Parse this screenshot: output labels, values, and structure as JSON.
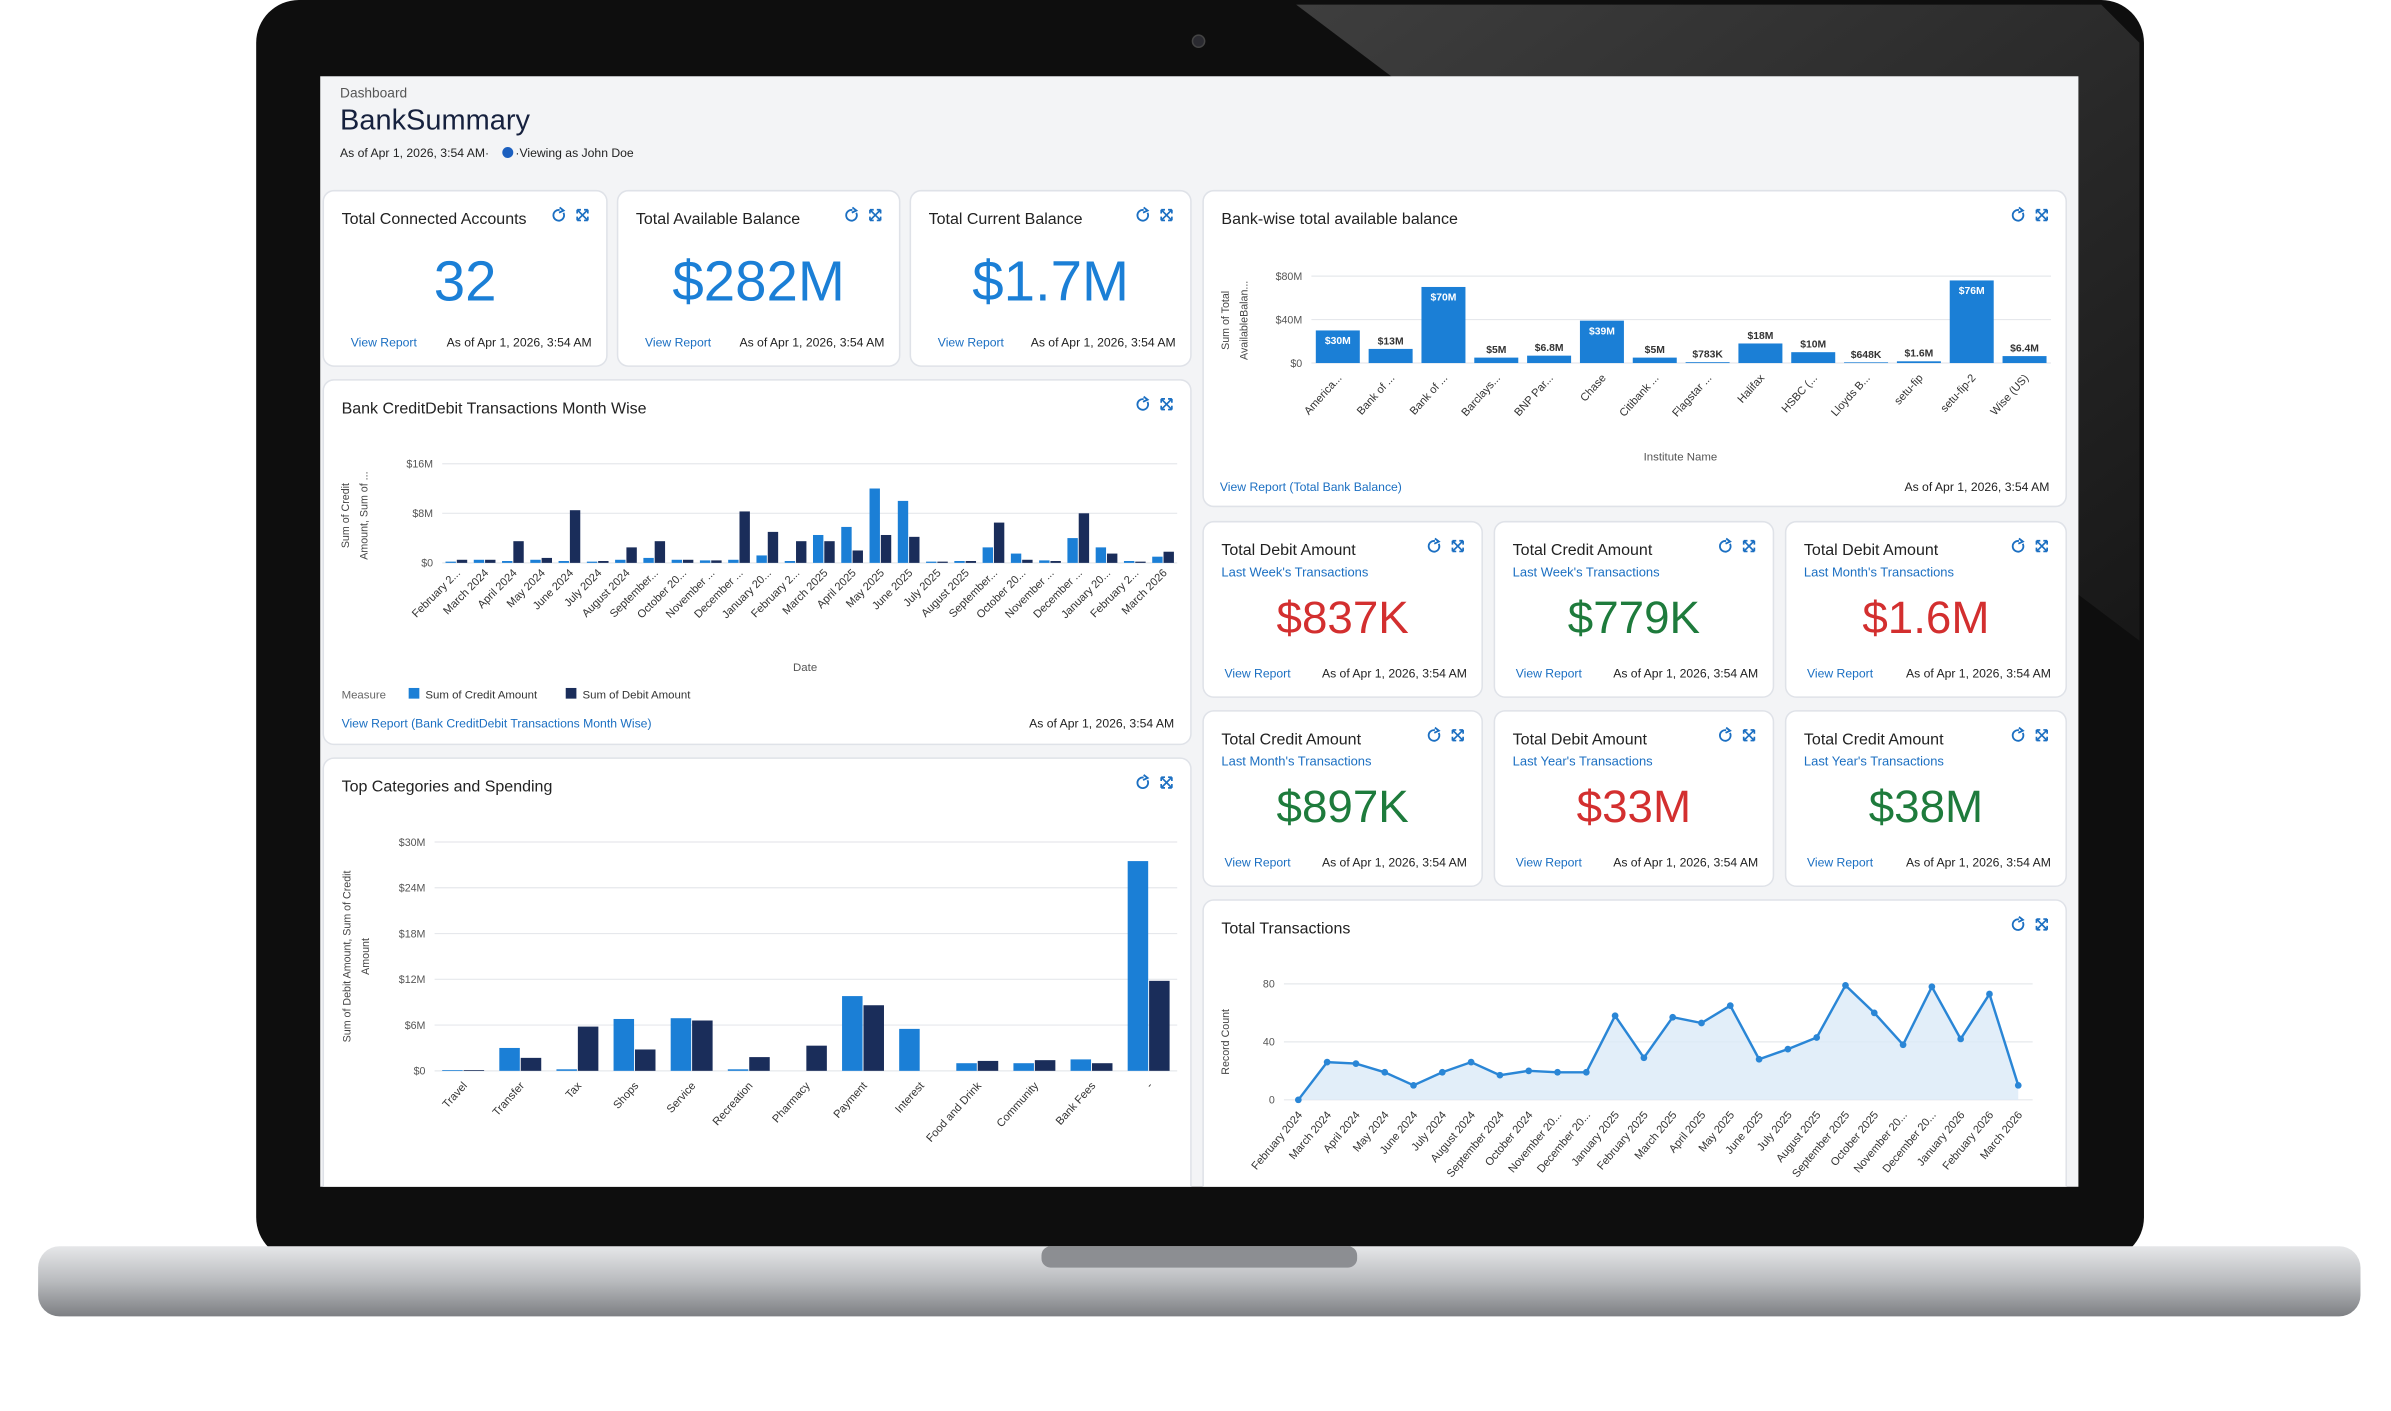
{
  "header": {
    "breadcrumb": "Dashboard",
    "title": "BankSummary",
    "as_of": "As of Apr 1, 2026, 3:54 AM·",
    "viewing": "·Viewing as John Doe"
  },
  "cards": [
    {
      "title": "Total Connected Accounts",
      "value": "32",
      "color": "#1b7fd6",
      "link": "View Report",
      "as_of": "As of Apr 1, 2026, 3:54 AM"
    },
    {
      "title": "Total Available Balance",
      "value": "$282M",
      "color": "#1b7fd6",
      "link": "View Report",
      "as_of": "As of Apr 1, 2026, 3:54 AM"
    },
    {
      "title": "Total Current Balance",
      "value": "$1.7M",
      "color": "#1b7fd6",
      "link": "View Report",
      "as_of": "As of Apr 1, 2026, 3:54 AM"
    },
    {
      "title": "Total Debit Amount",
      "subtitle": "Last Week's Transactions",
      "value": "$837K",
      "color": "#d32f2f",
      "link": "View Report",
      "as_of": "As of Apr 1, 2026, 3:54 AM"
    },
    {
      "title": "Total Credit Amount",
      "subtitle": "Last Week's Transactions",
      "value": "$779K",
      "color": "#1e7b3c",
      "link": "View Report",
      "as_of": "As of Apr 1, 2026, 3:54 AM"
    },
    {
      "title": "Total Debit Amount",
      "subtitle": "Last Month's Transactions",
      "value": "$1.6M",
      "color": "#d32f2f",
      "link": "View Report",
      "as_of": "As of Apr 1, 2026, 3:54 AM"
    },
    {
      "title": "Total Credit Amount",
      "subtitle": "Last Month's Transactions",
      "value": "$897K",
      "color": "#1e7b3c",
      "link": "View Report",
      "as_of": "As of Apr 1, 2026, 3:54 AM"
    },
    {
      "title": "Total Debit Amount",
      "subtitle": "Last Year's Transactions",
      "value": "$33M",
      "color": "#d32f2f",
      "link": "View Report",
      "as_of": "As of Apr 1, 2026, 3:54 AM"
    },
    {
      "title": "Total Credit Amount",
      "subtitle": "Last Year's Transactions",
      "value": "$38M",
      "color": "#1e7b3c",
      "link": "View Report",
      "as_of": "As of Apr 1, 2026, 3:54 AM"
    }
  ],
  "chart_data": [
    {
      "type": "bar",
      "title": "Bank-wise total available balance",
      "ylabel": [
        "Sum of Total",
        "AvailableBalan..."
      ],
      "xlabel": "Institute Name",
      "categories": [
        "America...",
        "Bank of ...",
        "Bank of ...",
        "Barclays...",
        "BNP Par...",
        "Chase",
        "Citibank ...",
        "Flagstar ...",
        "Halifax",
        "HSBC (...",
        "Lloyds B...",
        "setu-fip",
        "setu-fip-2",
        "Wise (US)"
      ],
      "values": [
        30000000,
        13000000,
        70000000,
        5000000,
        6800000,
        39000000,
        5000000,
        783000,
        18000000,
        10000000,
        648000,
        1600000,
        76000000,
        6400000
      ],
      "value_labels": [
        "$30M",
        "$13M",
        "$70M",
        "$5M",
        "$6.8M",
        "$39M",
        "$5M",
        "$783K",
        "$18M",
        "$10M",
        "$648K",
        "$1.6M",
        "$76M",
        "$6.4M"
      ],
      "color": "#1b7fd6",
      "ylim": [
        0,
        80000000
      ],
      "yticks": [
        {
          "value": 0,
          "label": "$0"
        },
        {
          "value": 40000000,
          "label": "$40M"
        },
        {
          "value": 80000000,
          "label": "$80M"
        }
      ],
      "grid": true,
      "footer_link": "View Report (Total Bank Balance)",
      "as_of": "As of Apr 1, 2026, 3:54 AM"
    },
    {
      "type": "bar",
      "title": "Bank CreditDebit Transactions Month Wise",
      "ylabel": [
        "Sum of Credit",
        "Amount, Sum of ..."
      ],
      "xlabel": "Date",
      "categories": [
        "February 2...",
        "March 2024",
        "April 2024",
        "May 2024",
        "June 2024",
        "July 2024",
        "August 2024",
        "September...",
        "October 20...",
        "November ...",
        "December ...",
        "January 20...",
        "February 2...",
        "March 2025",
        "April 2025",
        "May 2025",
        "June 2025",
        "July 2025",
        "August 2025",
        "September...",
        "October 20...",
        "November ...",
        "December ...",
        "January 20...",
        "February 2...",
        "March 2026"
      ],
      "series": [
        {
          "name": "Sum of Credit Amount",
          "color": "#1b7fd6",
          "values": [
            200000,
            500000,
            300000,
            500000,
            300000,
            200000,
            500000,
            800000,
            500000,
            400000,
            500000,
            1200000,
            300000,
            4500000,
            5800000,
            12000000,
            10000000,
            200000,
            300000,
            2500000,
            1500000,
            400000,
            4000000,
            2500000,
            300000,
            1000000
          ]
        },
        {
          "name": "Sum of Debit Amount",
          "color": "#1a2d5a",
          "values": [
            500000,
            500000,
            3500000,
            800000,
            8500000,
            300000,
            2500000,
            3500000,
            500000,
            400000,
            8300000,
            5000000,
            3500000,
            3500000,
            2000000,
            4500000,
            4200000,
            200000,
            300000,
            6500000,
            500000,
            300000,
            8000000,
            1500000,
            200000,
            1800000
          ]
        }
      ],
      "ylim": [
        0,
        16000000
      ],
      "yticks": [
        {
          "value": 0,
          "label": "$0"
        },
        {
          "value": 8000000,
          "label": "$8M"
        },
        {
          "value": 16000000,
          "label": "$16M"
        }
      ],
      "grid": true,
      "legend_title": "Measure",
      "footer_link": "View Report (Bank CreditDebit Transactions Month Wise)",
      "as_of": "As of Apr 1, 2026, 3:54 AM"
    },
    {
      "type": "bar",
      "title": "Top Categories and Spending",
      "ylabel": [
        "Sum of Debit Amount, Sum of Credit",
        "Amount"
      ],
      "categories": [
        "Travel",
        "Transfer",
        "Tax",
        "Shops",
        "Service",
        "Recreation",
        "Pharmacy",
        "Payment",
        "Interest",
        "Food and Drink",
        "Community",
        "Bank Fees",
        "-"
      ],
      "series": [
        {
          "color": "#1b7fd6",
          "values": [
            100000,
            3000000,
            200000,
            6800000,
            6900000,
            200000,
            0,
            9800000,
            5500000,
            1000000,
            1000000,
            1500000,
            27500000
          ]
        },
        {
          "color": "#1a2d5a",
          "values": [
            100000,
            1700000,
            5800000,
            2800000,
            6600000,
            1800000,
            3300000,
            8600000,
            0,
            1300000,
            1400000,
            1000000,
            11800000
          ]
        }
      ],
      "ylim": [
        0,
        30000000
      ],
      "yticks": [
        {
          "value": 0,
          "label": "$0"
        },
        {
          "value": 6000000,
          "label": "$6M"
        },
        {
          "value": 12000000,
          "label": "$12M"
        },
        {
          "value": 18000000,
          "label": "$18M"
        },
        {
          "value": 24000000,
          "label": "$24M"
        },
        {
          "value": 30000000,
          "label": "$30M"
        }
      ],
      "grid": true
    },
    {
      "type": "line",
      "title": "Total Transactions",
      "ylabel": [
        "Record Count"
      ],
      "categories": [
        "February 2024",
        "March 2024",
        "April 2024",
        "May 2024",
        "June 2024",
        "July 2024",
        "August 2024",
        "September 2024",
        "October 2024",
        "November 20...",
        "December 20...",
        "January 2025",
        "February 2025",
        "March 2025",
        "April 2025",
        "May 2025",
        "June 2025",
        "July 2025",
        "August 2025",
        "September 2025",
        "October 2025",
        "November 20...",
        "December 20...",
        "January 2026",
        "February 2026",
        "March 2026"
      ],
      "values": [
        0,
        26,
        25,
        19,
        10,
        19,
        26,
        17,
        20,
        19,
        19,
        58,
        29,
        57,
        53,
        65,
        28,
        35,
        43,
        79,
        60,
        38,
        78,
        42,
        73,
        10
      ],
      "color": "#2a86d6",
      "ylim": [
        0,
        80
      ],
      "yticks": [
        0,
        40,
        80
      ],
      "grid": true
    }
  ]
}
